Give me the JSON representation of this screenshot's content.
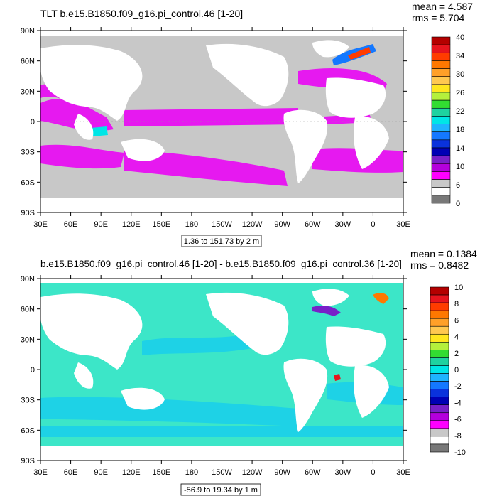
{
  "panels": [
    {
      "id": "top",
      "title": "TLT b.e15.B1850.f09_g16.pi_control.46 [1-20]",
      "stats_mean": "mean = 4.587",
      "stats_rms": "rms = 5.704",
      "range_label": "1.36 to 151.73 by 2 m",
      "lat_ticks": [
        "90N",
        "60N",
        "30N",
        "0",
        "30S",
        "60S",
        "90S"
      ],
      "lon_ticks": [
        "30E",
        "60E",
        "90E",
        "120E",
        "150E",
        "180",
        "150W",
        "120W",
        "90W",
        "60W",
        "30W",
        "0",
        "30E"
      ],
      "colorbar_labels": [
        "40",
        "34",
        "30",
        "26",
        "22",
        "18",
        "14",
        "10",
        "6",
        "0"
      ],
      "colorbar_colors": [
        "#b40000",
        "#e6141e",
        "#ff3c00",
        "#ff7800",
        "#ffa028",
        "#ffc850",
        "#ffe61e",
        "#b4f03c",
        "#32dc32",
        "#1ed2a0",
        "#00e6e6",
        "#1eb4ff",
        "#1478ff",
        "#0a32dc",
        "#0000b4",
        "#7820c8",
        "#b400dc",
        "#ff00ff",
        "#c8c8c8",
        "#ffffff",
        "#787878"
      ],
      "ocean_color": "#c8c8c8",
      "highlight_color": "#e619f0"
    },
    {
      "id": "bottom",
      "title": "b.e15.B1850.f09_g16.pi_control.46 [1-20] - b.e15.B1850.f09_g16.pi_control.36 [1-20]",
      "stats_mean": "mean = 0.1384",
      "stats_rms": "rms = 0.8482",
      "range_label": "-56.9 to 19.34 by 1 m",
      "lat_ticks": [
        "90N",
        "60N",
        "30N",
        "0",
        "30S",
        "60S",
        "90S"
      ],
      "lon_ticks": [
        "30E",
        "60E",
        "90E",
        "120E",
        "150E",
        "180",
        "150W",
        "120W",
        "90W",
        "60W",
        "30W",
        "0",
        "30E"
      ],
      "colorbar_labels": [
        "10",
        "8",
        "6",
        "4",
        "2",
        "0",
        "-2",
        "-4",
        "-6",
        "-8",
        "-10"
      ],
      "colorbar_colors": [
        "#b40000",
        "#e6141e",
        "#ff3c00",
        "#ff7800",
        "#ffa028",
        "#ffc850",
        "#ffe61e",
        "#b4f03c",
        "#32dc32",
        "#1ed2a0",
        "#00e6e6",
        "#1eb4ff",
        "#1478ff",
        "#0a32dc",
        "#0000b4",
        "#7820c8",
        "#b400dc",
        "#ff00ff",
        "#c8c8c8",
        "#ffffff",
        "#787878"
      ],
      "ocean_color": "#3ce6c8",
      "highlight_color": "#1ed2e6"
    }
  ]
}
